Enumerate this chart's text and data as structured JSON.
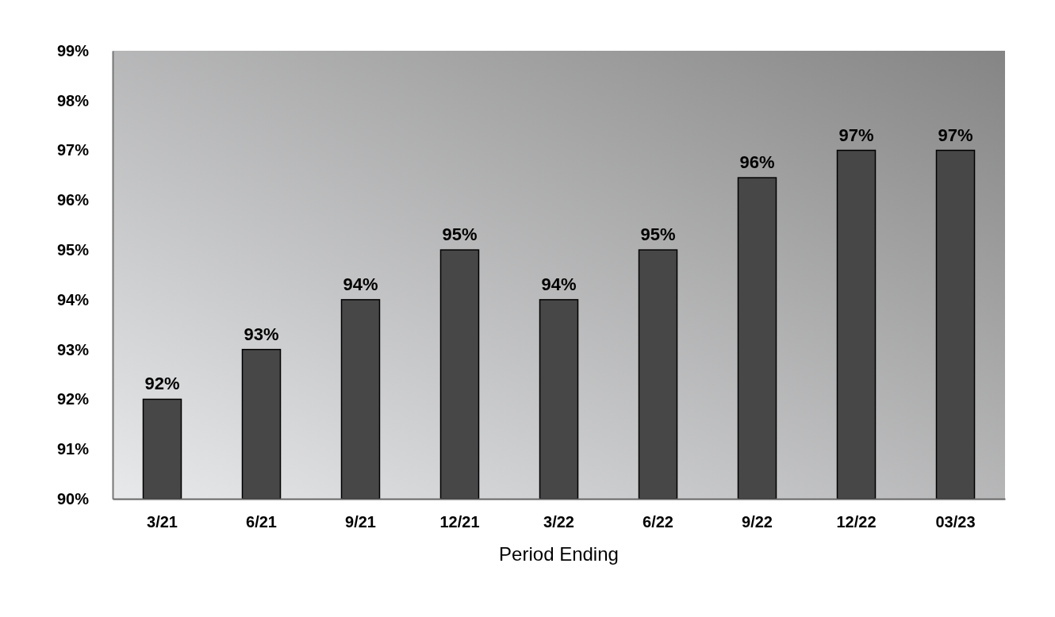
{
  "chart_data": {
    "type": "bar",
    "xlabel": "Period Ending",
    "categories": [
      "3/21",
      "6/21",
      "9/21",
      "12/21",
      "3/22",
      "6/22",
      "9/22",
      "12/22",
      "03/23"
    ],
    "values": [
      92,
      93,
      94,
      95,
      94,
      95,
      96.45,
      97,
      97
    ],
    "value_labels": [
      "92%",
      "93%",
      "94%",
      "95%",
      "94%",
      "95%",
      "96%",
      "97%",
      "97%"
    ],
    "color": "#474747",
    "ylim": [
      90,
      99
    ],
    "yticks": [
      {
        "value": 90,
        "label": "90%"
      },
      {
        "value": 91,
        "label": "91%"
      },
      {
        "value": 92,
        "label": "92%"
      },
      {
        "value": 93,
        "label": "93%"
      },
      {
        "value": 94,
        "label": "94%"
      },
      {
        "value": 95,
        "label": "95%"
      },
      {
        "value": 96,
        "label": "96%"
      },
      {
        "value": 97,
        "label": "97%"
      },
      {
        "value": 98,
        "label": "98%"
      },
      {
        "value": 99,
        "label": "99%"
      }
    ],
    "grid": false
  }
}
